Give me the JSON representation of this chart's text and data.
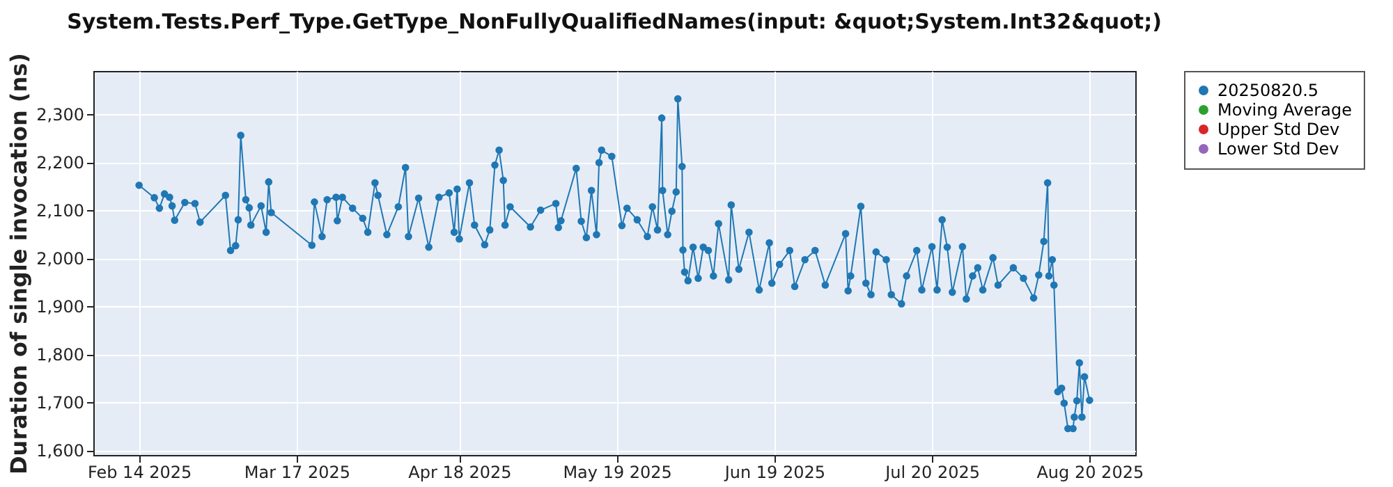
{
  "chart_data": {
    "type": "line",
    "title": "System.Tests.Perf_Type.GetType_NonFullyQualifiedNames(input: &quot;System.Int32&quot;)",
    "ylabel": "Duration of single invocation (ns)",
    "x": [
      "2025-02-14",
      "2025-02-17",
      "2025-02-18",
      "2025-02-19",
      "2025-02-20",
      "2025-02-20T12:00",
      "2025-02-21",
      "2025-02-23",
      "2025-02-25",
      "2025-02-26",
      "2025-03-03",
      "2025-03-04",
      "2025-03-05",
      "2025-03-05T12:00",
      "2025-03-06",
      "2025-03-07",
      "2025-03-07T16:00",
      "2025-03-08",
      "2025-03-10",
      "2025-03-11",
      "2025-03-11T12:00",
      "2025-03-12",
      "2025-03-20",
      "2025-03-20T12:00",
      "2025-03-22",
      "2025-03-23",
      "2025-03-24T18:00",
      "2025-03-25",
      "2025-03-26",
      "2025-03-28",
      "2025-03-30",
      "2025-03-31",
      "2025-04-01T10:00",
      "2025-04-02",
      "2025-04-03T18:00",
      "2025-04-06",
      "2025-04-07T10:00",
      "2025-04-08",
      "2025-04-10",
      "2025-04-12",
      "2025-04-14",
      "2025-04-16",
      "2025-04-17",
      "2025-04-17T14:00",
      "2025-04-18",
      "2025-04-20",
      "2025-04-21",
      "2025-04-23",
      "2025-04-24",
      "2025-04-25",
      "2025-04-25T20:00",
      "2025-04-26T16:00",
      "2025-04-27",
      "2025-04-28",
      "2025-05-02",
      "2025-05-04",
      "2025-05-07",
      "2025-05-07T12:00",
      "2025-05-08",
      "2025-05-11",
      "2025-05-12",
      "2025-05-13",
      "2025-05-14",
      "2025-05-15",
      "2025-05-15T12:00",
      "2025-05-16",
      "2025-05-18",
      "2025-05-20",
      "2025-05-21",
      "2025-05-23",
      "2025-05-25",
      "2025-05-26",
      "2025-05-27",
      "2025-05-27T20:00",
      "2025-05-28",
      "2025-05-29",
      "2025-05-29T20:00",
      "2025-05-30T16:00",
      "2025-05-31",
      "2025-05-31T20:00",
      "2025-06-01",
      "2025-06-01T08:00",
      "2025-06-02",
      "2025-06-03",
      "2025-06-04",
      "2025-06-05",
      "2025-06-06",
      "2025-06-07",
      "2025-06-08",
      "2025-06-10",
      "2025-06-10T12:00",
      "2025-06-12",
      "2025-06-14",
      "2025-06-16",
      "2025-06-18",
      "2025-06-18T12:00",
      "2025-06-20",
      "2025-06-22",
      "2025-06-23",
      "2025-06-25",
      "2025-06-27",
      "2025-06-29",
      "2025-07-03",
      "2025-07-03T12:00",
      "2025-07-04",
      "2025-07-06",
      "2025-07-07",
      "2025-07-08",
      "2025-07-09",
      "2025-07-11",
      "2025-07-12",
      "2025-07-14",
      "2025-07-15",
      "2025-07-17",
      "2025-07-18",
      "2025-07-20",
      "2025-07-21",
      "2025-07-22",
      "2025-07-23",
      "2025-07-24",
      "2025-07-26",
      "2025-07-26T18:00",
      "2025-07-28",
      "2025-07-29",
      "2025-07-30",
      "2025-08-01",
      "2025-08-02",
      "2025-08-05",
      "2025-08-07",
      "2025-08-09",
      "2025-08-10",
      "2025-08-11",
      "2025-08-11T18:00",
      "2025-08-12",
      "2025-08-12T16:00",
      "2025-08-13",
      "2025-08-13T18:00",
      "2025-08-14T12:00",
      "2025-08-15",
      "2025-08-15T18:00",
      "2025-08-16T18:00",
      "2025-08-17",
      "2025-08-17T12:00",
      "2025-08-18",
      "2025-08-18T12:00",
      "2025-08-19",
      "2025-08-20"
    ],
    "series": [
      {
        "name": "20250820.5",
        "color": "#1f77b4",
        "values": [
          2152,
          2126,
          2104,
          2134,
          2127,
          2109,
          2079,
          2116,
          2114,
          2075,
          2131,
          2016,
          2026,
          2080,
          2256,
          2122,
          2105,
          2069,
          2109,
          2054,
          2159,
          2095,
          2027,
          2117,
          2045,
          2122,
          2127,
          2078,
          2127,
          2104,
          2083,
          2054,
          2157,
          2131,
          2049,
          2107,
          2189,
          2045,
          2125,
          2023,
          2127,
          2136,
          2054,
          2144,
          2040,
          2157,
          2069,
          2028,
          2059,
          2194,
          2225,
          2162,
          2069,
          2107,
          2065,
          2100,
          2114,
          2064,
          2078,
          2187,
          2077,
          2043,
          2141,
          2049,
          2199,
          2225,
          2212,
          2068,
          2104,
          2080,
          2045,
          2107,
          2059,
          2292,
          2141,
          2049,
          2098,
          2138,
          2332,
          2191,
          2017,
          1971,
          1953,
          2023,
          1958,
          2023,
          2016,
          1963,
          2072,
          1955,
          2111,
          1977,
          2054,
          1934,
          2032,
          1948,
          1987,
          2016,
          1941,
          1997,
          2016,
          1944,
          2051,
          1932,
          1963,
          2108,
          1948,
          1924,
          2013,
          1997,
          1924,
          1905,
          1963,
          2016,
          1934,
          2024,
          1934,
          2080,
          2023,
          1929,
          2024,
          1915,
          1963,
          1980,
          1934,
          2001,
          1944,
          1980,
          1958,
          1917,
          1965,
          2035,
          2157,
          1963,
          1997,
          1944,
          1722,
          1729,
          1698,
          1645,
          1645,
          1669,
          1703,
          1782,
          1669,
          1753,
          1704
        ]
      },
      {
        "name": "Moving Average",
        "color": "#2ca02c",
        "values": [
          null,
          null,
          null,
          null,
          null,
          null,
          null,
          null,
          null,
          null,
          null,
          null,
          null,
          null,
          null,
          null,
          null,
          null,
          null,
          null,
          null,
          null,
          null,
          null,
          null,
          null,
          null,
          null,
          null,
          null,
          null,
          null,
          null,
          null,
          null,
          null,
          null,
          null,
          null,
          null,
          null,
          null,
          null,
          null,
          null,
          null,
          null,
          null,
          null,
          null,
          null,
          null,
          null,
          null,
          null,
          null,
          null,
          null,
          null,
          null,
          null,
          null,
          null,
          null,
          null,
          null,
          null,
          null,
          null,
          null,
          null,
          null,
          null,
          null,
          null,
          null,
          null,
          null,
          null,
          null,
          null,
          null,
          null,
          null,
          null,
          null,
          null,
          null,
          null,
          null,
          null,
          null,
          null,
          null,
          null,
          null,
          null,
          null,
          null,
          null,
          null,
          null,
          null,
          null,
          null,
          null,
          null,
          null,
          null,
          null,
          null,
          null,
          null,
          null,
          null,
          null,
          null,
          null,
          null,
          null,
          null,
          null,
          null,
          null,
          null,
          null,
          null,
          null,
          null,
          null,
          null,
          null,
          null,
          null,
          null,
          null,
          null,
          null,
          null,
          null,
          null,
          null,
          null,
          null,
          null,
          null,
          null
        ]
      },
      {
        "name": "Upper Std Dev",
        "color": "#d62728",
        "values": [
          null,
          null,
          null,
          null,
          null,
          null,
          null,
          null,
          null,
          null,
          null,
          null,
          null,
          null,
          null,
          null,
          null,
          null,
          null,
          null,
          null,
          null,
          null,
          null,
          null,
          null,
          null,
          null,
          null,
          null,
          null,
          null,
          null,
          null,
          null,
          null,
          null,
          null,
          null,
          null,
          null,
          null,
          null,
          null,
          null,
          null,
          null,
          null,
          null,
          null,
          null,
          null,
          null,
          null,
          null,
          null,
          null,
          null,
          null,
          null,
          null,
          null,
          null,
          null,
          null,
          null,
          null,
          null,
          null,
          null,
          null,
          null,
          null,
          null,
          null,
          null,
          null,
          null,
          null,
          null,
          null,
          null,
          null,
          null,
          null,
          null,
          null,
          null,
          null,
          null,
          null,
          null,
          null,
          null,
          null,
          null,
          null,
          null,
          null,
          null,
          null,
          null,
          null,
          null,
          null,
          null,
          null,
          null,
          null,
          null,
          null,
          null,
          null,
          null,
          null,
          null,
          null,
          null,
          null,
          null,
          null,
          null,
          null,
          null,
          null,
          null,
          null,
          null,
          null,
          null,
          null,
          null,
          null,
          null,
          null,
          null,
          null,
          null,
          null,
          null,
          null,
          null,
          null,
          null,
          null,
          null,
          null
        ]
      },
      {
        "name": "Lower Std Dev",
        "color": "#9467bd",
        "values": [
          null,
          null,
          null,
          null,
          null,
          null,
          null,
          null,
          null,
          null,
          null,
          null,
          null,
          null,
          null,
          null,
          null,
          null,
          null,
          null,
          null,
          null,
          null,
          null,
          null,
          null,
          null,
          null,
          null,
          null,
          null,
          null,
          null,
          null,
          null,
          null,
          null,
          null,
          null,
          null,
          null,
          null,
          null,
          null,
          null,
          null,
          null,
          null,
          null,
          null,
          null,
          null,
          null,
          null,
          null,
          null,
          null,
          null,
          null,
          null,
          null,
          null,
          null,
          null,
          null,
          null,
          null,
          null,
          null,
          null,
          null,
          null,
          null,
          null,
          null,
          null,
          null,
          null,
          null,
          null,
          null,
          null,
          null,
          null,
          null,
          null,
          null,
          null,
          null,
          null,
          null,
          null,
          null,
          null,
          null,
          null,
          null,
          null,
          null,
          null,
          null,
          null,
          null,
          null,
          null,
          null,
          null,
          null,
          null,
          null,
          null,
          null,
          null,
          null,
          null,
          null,
          null,
          null,
          null,
          null,
          null,
          null,
          null,
          null,
          null,
          null,
          null,
          null,
          null,
          null,
          null,
          null,
          null,
          null,
          null,
          null,
          null,
          null,
          null,
          null,
          null,
          null,
          null,
          null,
          null,
          null,
          null
        ]
      }
    ],
    "xlim": [
      "2025-02-05",
      "2025-08-29"
    ],
    "xticks": [
      {
        "value": "2025-02-14",
        "label": "Feb 14 2025"
      },
      {
        "value": "2025-03-17",
        "label": "Mar 17 2025"
      },
      {
        "value": "2025-04-18",
        "label": "Apr 18 2025"
      },
      {
        "value": "2025-05-19",
        "label": "May 19 2025"
      },
      {
        "value": "2025-06-19",
        "label": "Jun 19 2025"
      },
      {
        "value": "2025-07-20",
        "label": "Jul 20 2025"
      },
      {
        "value": "2025-08-20",
        "label": "Aug 20 2025"
      }
    ],
    "ylim": [
      1590,
      2390
    ],
    "yticks": [
      {
        "value": 1600,
        "label": "1,600"
      },
      {
        "value": 1700,
        "label": "1,700"
      },
      {
        "value": 1800,
        "label": "1,800"
      },
      {
        "value": 1900,
        "label": "1,900"
      },
      {
        "value": 2000,
        "label": "2,000"
      },
      {
        "value": 2100,
        "label": "2,100"
      },
      {
        "value": 2200,
        "label": "2,200"
      },
      {
        "value": 2300,
        "label": "2,300"
      }
    ],
    "grid": true,
    "legend": "right",
    "marker": "circle",
    "line_style": "solid"
  }
}
